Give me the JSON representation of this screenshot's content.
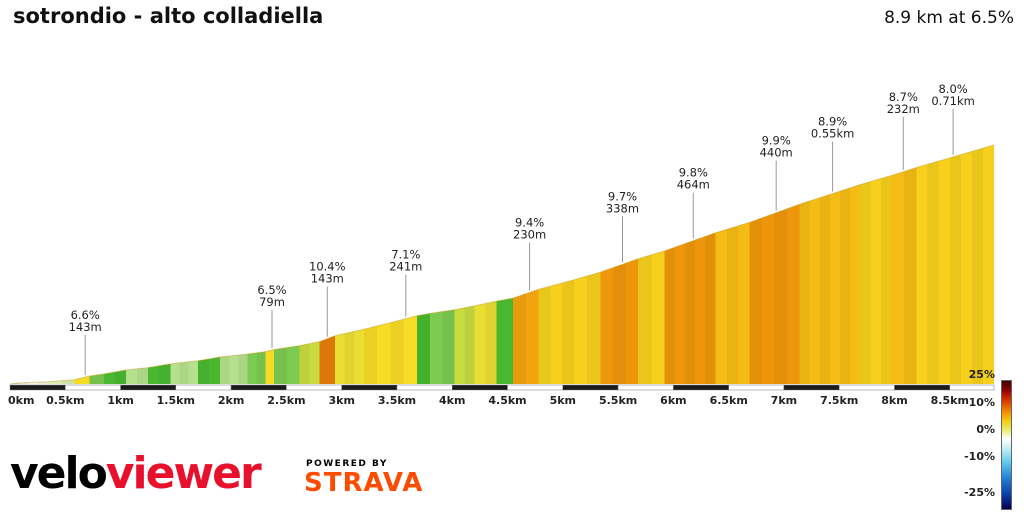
{
  "header": {
    "title": "sotrondio - alto colladiella",
    "summary": "8.9 km at 6.5%"
  },
  "chart_data": {
    "type": "area",
    "title": "sotrondio - alto colladiella",
    "summary_label": "8.9 km at 6.5%",
    "total_km": 8.9,
    "avg_gradient_pct": 6.5,
    "x_unit": "km",
    "xlim": [
      0,
      8.9
    ],
    "x_ticks": [
      "0km",
      "0.5km",
      "1km",
      "1.5km",
      "2km",
      "2.5km",
      "3km",
      "3.5km",
      "4km",
      "4.5km",
      "5km",
      "5.5km",
      "6km",
      "6.5km",
      "7km",
      "7.5km",
      "8km",
      "8.5km"
    ],
    "segments": [
      {
        "start": 0.0,
        "end": 0.08,
        "gradient": 3.0
      },
      {
        "start": 0.08,
        "end": 0.35,
        "gradient": 1.2
      },
      {
        "start": 0.35,
        "end": 0.58,
        "gradient": 2.2
      },
      {
        "start": 0.58,
        "end": 0.72,
        "gradient": 6.6
      },
      {
        "start": 0.72,
        "end": 0.85,
        "gradient": 4.0
      },
      {
        "start": 0.85,
        "end": 1.05,
        "gradient": 4.8
      },
      {
        "start": 1.05,
        "end": 1.25,
        "gradient": 3.0
      },
      {
        "start": 1.25,
        "end": 1.45,
        "gradient": 4.6
      },
      {
        "start": 1.45,
        "end": 1.7,
        "gradient": 3.2
      },
      {
        "start": 1.7,
        "end": 1.9,
        "gradient": 4.5
      },
      {
        "start": 1.9,
        "end": 2.15,
        "gradient": 3.0
      },
      {
        "start": 2.15,
        "end": 2.31,
        "gradient": 3.8
      },
      {
        "start": 2.31,
        "end": 2.39,
        "gradient": 6.5
      },
      {
        "start": 2.39,
        "end": 2.62,
        "gradient": 4.2
      },
      {
        "start": 2.62,
        "end": 2.8,
        "gradient": 5.5
      },
      {
        "start": 2.8,
        "end": 2.94,
        "gradient": 10.4
      },
      {
        "start": 2.94,
        "end": 3.2,
        "gradient": 6.2
      },
      {
        "start": 3.2,
        "end": 3.44,
        "gradient": 6.8
      },
      {
        "start": 3.44,
        "end": 3.68,
        "gradient": 7.1
      },
      {
        "start": 3.68,
        "end": 3.8,
        "gradient": 5.0
      },
      {
        "start": 3.8,
        "end": 4.02,
        "gradient": 4.2
      },
      {
        "start": 4.02,
        "end": 4.2,
        "gradient": 5.2
      },
      {
        "start": 4.2,
        "end": 4.4,
        "gradient": 6.0
      },
      {
        "start": 4.4,
        "end": 4.55,
        "gradient": 5.0
      },
      {
        "start": 4.55,
        "end": 4.78,
        "gradient": 9.4
      },
      {
        "start": 4.78,
        "end": 5.1,
        "gradient": 7.4
      },
      {
        "start": 5.1,
        "end": 5.34,
        "gradient": 8.0
      },
      {
        "start": 5.34,
        "end": 5.68,
        "gradient": 9.7
      },
      {
        "start": 5.68,
        "end": 5.92,
        "gradient": 8.2
      },
      {
        "start": 5.92,
        "end": 6.38,
        "gradient": 9.8
      },
      {
        "start": 6.38,
        "end": 6.69,
        "gradient": 8.4
      },
      {
        "start": 6.69,
        "end": 7.14,
        "gradient": 9.9
      },
      {
        "start": 7.14,
        "end": 7.69,
        "gradient": 8.9
      },
      {
        "start": 7.69,
        "end": 7.97,
        "gradient": 8.0
      },
      {
        "start": 7.97,
        "end": 8.2,
        "gradient": 8.7
      },
      {
        "start": 8.2,
        "end": 8.9,
        "gradient": 8.0
      }
    ],
    "annotations": [
      {
        "km": 0.68,
        "gradient": "6.6%",
        "length": "143m",
        "drop": 42
      },
      {
        "km": 2.37,
        "gradient": "6.5%",
        "length": "79m",
        "drop": 40
      },
      {
        "km": 2.87,
        "gradient": "10.4%",
        "length": "143m",
        "drop": 52
      },
      {
        "km": 3.58,
        "gradient": "7.1%",
        "length": "241m",
        "drop": 44
      },
      {
        "km": 4.7,
        "gradient": "9.4%",
        "length": "230m",
        "drop": 50
      },
      {
        "km": 5.54,
        "gradient": "9.7%",
        "length": "338m",
        "drop": 48
      },
      {
        "km": 6.18,
        "gradient": "9.8%",
        "length": "464m",
        "drop": 48
      },
      {
        "km": 6.93,
        "gradient": "9.9%",
        "length": "440m",
        "drop": 52
      },
      {
        "km": 7.44,
        "gradient": "8.9%",
        "length": "0.55km",
        "drop": 52
      },
      {
        "km": 8.08,
        "gradient": "8.7%",
        "length": "232m",
        "drop": 55
      },
      {
        "km": 8.53,
        "gradient": "8.0%",
        "length": "0.71km",
        "drop": 48
      }
    ],
    "palette": [
      {
        "max": 1.5,
        "color": "#f5f5e6"
      },
      {
        "max": 2.5,
        "color": "#dcedb4"
      },
      {
        "max": 3.5,
        "color": "#b5e08c"
      },
      {
        "max": 4.4,
        "color": "#7ccb50"
      },
      {
        "max": 5.0,
        "color": "#49b830"
      },
      {
        "max": 5.7,
        "color": "#c8dc3f"
      },
      {
        "max": 6.4,
        "color": "#eade32"
      },
      {
        "max": 7.3,
        "color": "#f6dc26"
      },
      {
        "max": 8.2,
        "color": "#f6d01c"
      },
      {
        "max": 9.0,
        "color": "#f4bc14"
      },
      {
        "max": 9.6,
        "color": "#f2a40e"
      },
      {
        "max": 10.0,
        "color": "#ee960b"
      },
      {
        "max": 99.0,
        "color": "#e67e08"
      }
    ],
    "legend": {
      "ticks": [
        "25%",
        "10%",
        "0%",
        "-10%",
        "-25%"
      ],
      "stops": [
        {
          "pos": "0%",
          "color": "#400000"
        },
        {
          "pos": "7%",
          "color": "#8e0000"
        },
        {
          "pos": "15%",
          "color": "#d93400"
        },
        {
          "pos": "23%",
          "color": "#f08200"
        },
        {
          "pos": "31%",
          "color": "#f4cc0e"
        },
        {
          "pos": "38%",
          "color": "#e8ec6a"
        },
        {
          "pos": "45%",
          "color": "#ffffff"
        },
        {
          "pos": "53%",
          "color": "#c2eef4"
        },
        {
          "pos": "64%",
          "color": "#5cc8f0"
        },
        {
          "pos": "77%",
          "color": "#1e7ad2"
        },
        {
          "pos": "89%",
          "color": "#0b3ca6"
        },
        {
          "pos": "100%",
          "color": "#050050"
        }
      ]
    }
  },
  "footer": {
    "brand_black": "velo",
    "brand_red": "viewer",
    "brand_red_color": "#e8112d",
    "powered_by": "POWERED BY",
    "strava": "STRAVA",
    "strava_color": "#fc4c02"
  }
}
